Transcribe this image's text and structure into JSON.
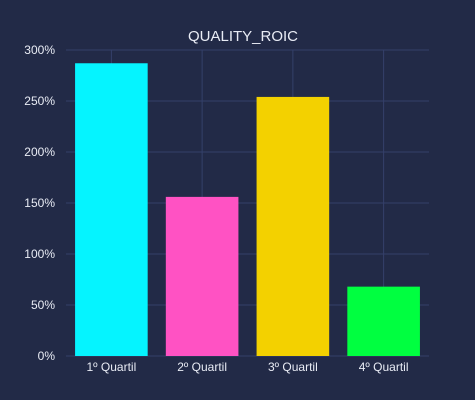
{
  "chart_data": {
    "type": "bar",
    "title": "QUALITY_ROIC",
    "xlabel": "",
    "ylabel": "",
    "categories": [
      "1º Quartil",
      "2º Quartil",
      "3º Quartil",
      "4º Quartil"
    ],
    "values": [
      287,
      156,
      254,
      68
    ],
    "y_unit": "%",
    "ylim": [
      0,
      300
    ],
    "yticks": [
      0,
      50,
      100,
      150,
      200,
      250,
      300
    ],
    "ytick_labels": [
      "0%",
      "50%",
      "100%",
      "150%",
      "200%",
      "250%",
      "300%"
    ],
    "bar_colors": [
      "#05f4ff",
      "#ff52c3",
      "#f3d100",
      "#00ff40"
    ],
    "background_color": "#222a47",
    "grid": true,
    "legend": "none"
  }
}
